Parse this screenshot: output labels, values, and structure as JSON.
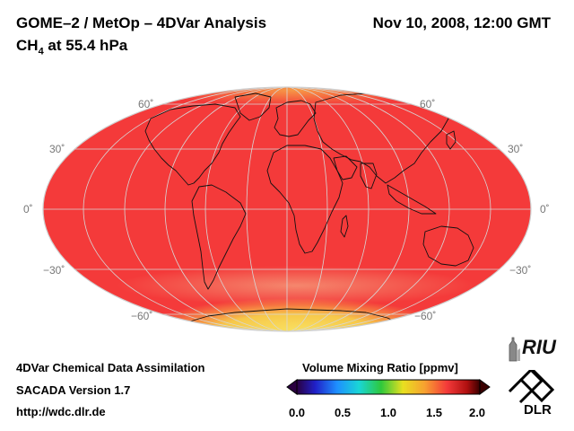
{
  "header": {
    "title": "GOME–2 / MetOp – 4DVar Analysis",
    "subtitle_prefix": "CH",
    "subtitle_subscript": "4",
    "subtitle_suffix": " at 55.4 hPa",
    "datetime": "Nov 10, 2008, 12:00 GMT"
  },
  "map": {
    "projection": "Mollweide",
    "field": "CH4 volume mixing ratio",
    "background_color": "#f43a3a",
    "polar_high_color": "#f7d04a",
    "grid_color": "#d7d7d7",
    "coastline_color": "#111111",
    "lat_labels": {
      "n60": "60˚",
      "n30": "30˚",
      "eq": "0˚",
      "s30": "−30˚",
      "s60": "−60˚"
    }
  },
  "colorbar": {
    "title": "Volume Mixing Ratio [ppmv]",
    "ticks": [
      "0.0",
      "0.5",
      "1.0",
      "1.5",
      "2.0"
    ],
    "min": 0.0,
    "max": 2.0
  },
  "footer": {
    "line1": "4DVar Chemical Data Assimilation",
    "line2": "SACADA Version 1.7",
    "line3": "http://wdc.dlr.de"
  },
  "logos": {
    "riu": "RIU",
    "dlr": "DLR"
  }
}
